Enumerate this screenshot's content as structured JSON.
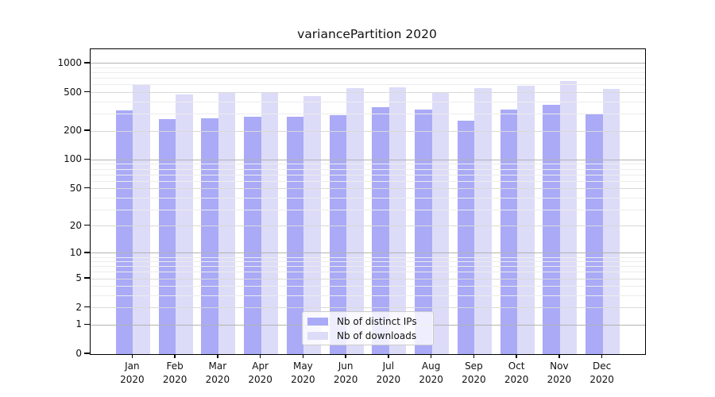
{
  "title": "variancePartition 2020",
  "colors": {
    "distinct_ips_bar": "#aaaaf7",
    "downloads_bar": "#dcdcf8",
    "grid_major": "#b3b3b3",
    "grid_mid": "#d9d9d9",
    "grid_minor": "#ececec",
    "axis_frame": "#000000",
    "text": "#111111",
    "legend_border": "#cccccc"
  },
  "chart_data": {
    "type": "bar",
    "title": "variancePartition 2020",
    "yscale": "log10(value+1) symlog-like, 0 at baseline",
    "ylim": [
      0,
      1400
    ],
    "grid": "on",
    "legend_position": "inside lower-center",
    "y_tick_values": [
      1000,
      500,
      200,
      100,
      50,
      20,
      10,
      5,
      2,
      1,
      0
    ],
    "y_tick_labels": [
      "1000",
      "500",
      "200",
      "100",
      "50",
      "20",
      "10",
      "5",
      "2",
      "1",
      "0"
    ],
    "y_major_gridlines": [
      1,
      10,
      100,
      1000
    ],
    "y_mid_gridlines": [
      2,
      5,
      20,
      50,
      200,
      500
    ],
    "y_minor_gridlines": [
      3,
      4,
      6,
      7,
      8,
      9,
      30,
      40,
      60,
      70,
      80,
      90,
      300,
      400,
      600,
      700,
      800,
      900
    ],
    "categories": [
      "Jan",
      "Feb",
      "Mar",
      "Apr",
      "May",
      "Jun",
      "Jul",
      "Aug",
      "Sep",
      "Oct",
      "Nov",
      "Dec"
    ],
    "category_year": "2020",
    "series": [
      {
        "name": "Nb of distinct IPs",
        "color": "#aaaaf7",
        "values": [
          325,
          265,
          272,
          282,
          284,
          290,
          350,
          332,
          255,
          336,
          372,
          296
        ]
      },
      {
        "name": "Nb of downloads",
        "color": "#dcdcf8",
        "values": [
          610,
          475,
          500,
          505,
          462,
          554,
          562,
          505,
          556,
          588,
          655,
          550
        ]
      }
    ]
  }
}
